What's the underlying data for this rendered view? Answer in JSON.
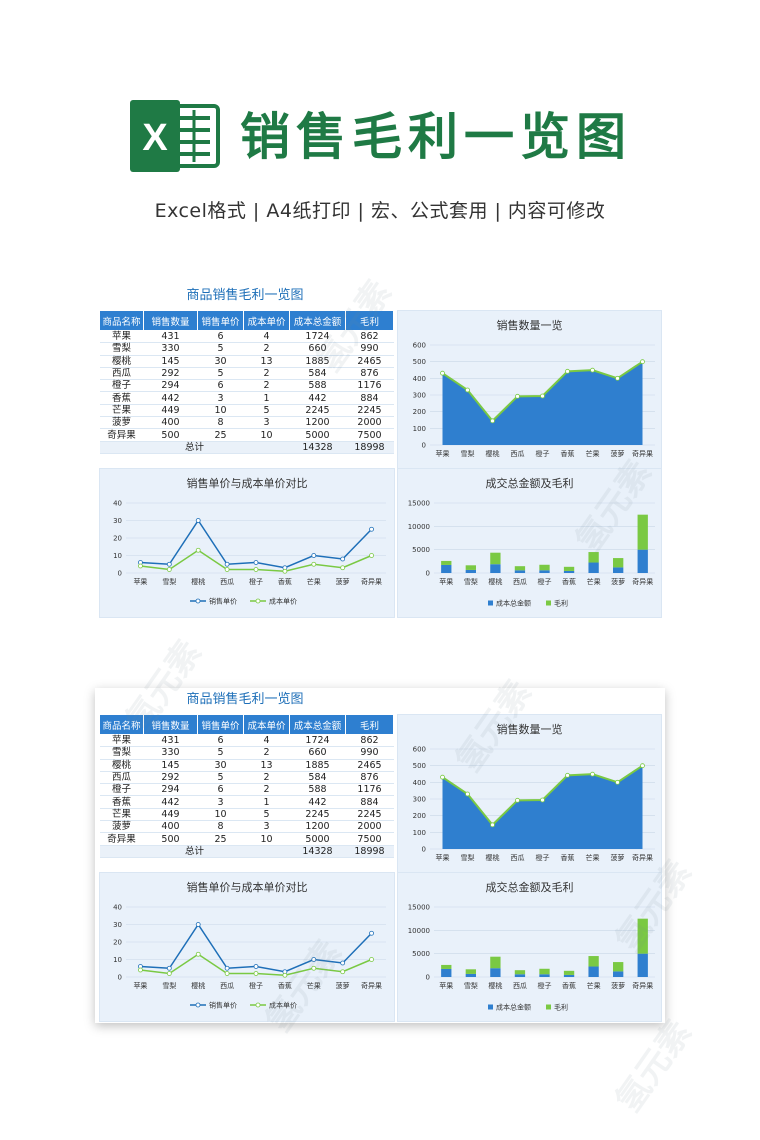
{
  "header": {
    "logo_letter": "X",
    "title": "销售毛利一览图",
    "subtitle": "Excel格式 |  A4纸打印 | 宏、公式套用 | 内容可修改"
  },
  "colors": {
    "brand_green": "#1f7a45",
    "blue": "#2e7fd0",
    "green": "#7ac943"
  },
  "watermark": "氢元素",
  "sheet": {
    "title": "商品销售毛利一览图",
    "columns": [
      "商品名称",
      "销售数量",
      "销售单价",
      "成本单价",
      "成本总金额",
      "毛利"
    ],
    "rows": [
      [
        "苹果",
        "431",
        "6",
        "4",
        "1724",
        "862"
      ],
      [
        "雪梨",
        "330",
        "5",
        "2",
        "660",
        "990"
      ],
      [
        "樱桃",
        "145",
        "30",
        "13",
        "1885",
        "2465"
      ],
      [
        "西瓜",
        "292",
        "5",
        "2",
        "584",
        "876"
      ],
      [
        "橙子",
        "294",
        "6",
        "2",
        "588",
        "1176"
      ],
      [
        "香蕉",
        "442",
        "3",
        "1",
        "442",
        "884"
      ],
      [
        "芒果",
        "449",
        "10",
        "5",
        "2245",
        "2245"
      ],
      [
        "菠萝",
        "400",
        "8",
        "3",
        "1200",
        "2000"
      ],
      [
        "奇异果",
        "500",
        "25",
        "10",
        "5000",
        "7500"
      ]
    ],
    "total_label": "总计",
    "total_cost": "14328",
    "total_profit": "18998"
  },
  "chart_data": [
    {
      "type": "area",
      "title": "销售数量一览",
      "categories": [
        "苹果",
        "雪梨",
        "樱桃",
        "西瓜",
        "橙子",
        "香蕉",
        "芒果",
        "菠萝",
        "奇异果"
      ],
      "series": [
        {
          "values": [
            431,
            330,
            145,
            292,
            294,
            442,
            449,
            400,
            500
          ]
        }
      ],
      "ylim": [
        0,
        600
      ],
      "yticks": [
        0,
        100,
        200,
        300,
        400,
        500,
        600
      ]
    },
    {
      "type": "line",
      "title": "销售单价与成本单价对比",
      "categories": [
        "苹果",
        "雪梨",
        "樱桃",
        "西瓜",
        "橙子",
        "香蕉",
        "芒果",
        "菠萝",
        "奇异果"
      ],
      "series": [
        {
          "name": "销售单价",
          "values": [
            6,
            5,
            30,
            5,
            6,
            3,
            10,
            8,
            25
          ]
        },
        {
          "name": "成本单价",
          "values": [
            4,
            2,
            13,
            2,
            2,
            1,
            5,
            3,
            10
          ]
        }
      ],
      "ylim": [
        0,
        40
      ],
      "yticks": [
        0,
        10,
        20,
        30,
        40
      ],
      "legend": "bottom"
    },
    {
      "type": "bar",
      "title": "成交总金额及毛利",
      "stacked": true,
      "categories": [
        "苹果",
        "雪梨",
        "樱桃",
        "西瓜",
        "橙子",
        "香蕉",
        "芒果",
        "菠萝",
        "奇异果"
      ],
      "series": [
        {
          "name": "成本总金额",
          "values": [
            1724,
            660,
            1885,
            584,
            588,
            442,
            2245,
            1200,
            5000
          ]
        },
        {
          "name": "毛利",
          "values": [
            862,
            990,
            2465,
            876,
            1176,
            884,
            2245,
            2000,
            7500
          ]
        }
      ],
      "ylim": [
        0,
        15000
      ],
      "yticks": [
        0,
        5000,
        10000,
        15000
      ],
      "legend": "bottom"
    }
  ]
}
